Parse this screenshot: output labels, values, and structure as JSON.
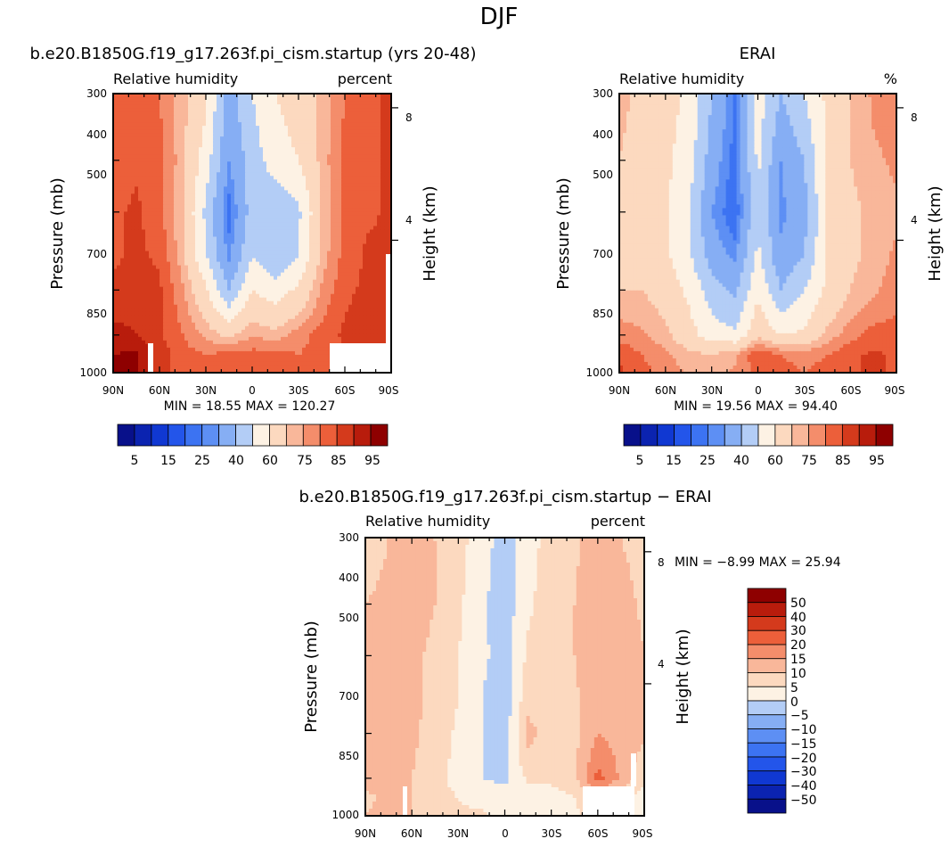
{
  "figure": {
    "title": "DJF"
  },
  "colors": {
    "blue_dark": "#08108a",
    "red_dark": "#8e0000",
    "neutral": "#fdf2e4",
    "frame": "#000000",
    "missing": "#ffffff"
  },
  "chart_data": [
    {
      "type": "heatmap",
      "title": "b.e20.B1850G.f19_g17.263f.pi_cism.startup (yrs 20-48)",
      "field_label": "Relative humidity",
      "units_label": "percent",
      "xlabel": "",
      "ylabel": "Pressure (mb)",
      "right_axis_label": "Height (km)",
      "x_ticks": [
        "90N",
        "60N",
        "30N",
        "0",
        "30S",
        "60S",
        "90S"
      ],
      "y_ticks": [
        "300",
        "400",
        "500",
        "700",
        "850",
        "1000"
      ],
      "height_ticks": [
        "8",
        "4"
      ],
      "y_scale": "log-pressure",
      "ylim": [
        1000,
        300
      ],
      "stats_text": "MIN =   18.55   MAX = 120.27",
      "colorbar_levels": [
        5,
        10,
        15,
        20,
        25,
        30,
        40,
        50,
        60,
        70,
        75,
        80,
        85,
        90,
        95
      ],
      "colorbar_labels": [
        "5",
        "15",
        "25",
        "40",
        "60",
        "75",
        "85",
        "95"
      ],
      "colorbar_orientation": "horizontal",
      "lat_grid": [
        90,
        75,
        60,
        45,
        30,
        15,
        0,
        -15,
        -30,
        -45,
        -60,
        -75,
        -90
      ],
      "p_grid": [
        300,
        400,
        500,
        600,
        700,
        850,
        925,
        1000
      ],
      "values": [
        [
          80,
          82,
          80,
          72,
          62,
          35,
          50,
          60,
          65,
          72,
          80,
          84,
          86
        ],
        [
          82,
          84,
          82,
          72,
          55,
          30,
          45,
          55,
          60,
          72,
          82,
          84,
          86
        ],
        [
          84,
          86,
          82,
          70,
          48,
          22,
          45,
          40,
          48,
          70,
          82,
          84,
          86
        ],
        [
          84,
          86,
          84,
          72,
          50,
          28,
          50,
          40,
          50,
          72,
          82,
          86,
          86
        ],
        [
          86,
          88,
          86,
          76,
          62,
          40,
          60,
          55,
          62,
          76,
          84,
          86,
          86
        ],
        [
          92,
          90,
          86,
          80,
          74,
          68,
          75,
          72,
          78,
          82,
          86,
          88,
          86
        ],
        [
          95,
          96,
          88,
          82,
          80,
          82,
          82,
          82,
          80,
          82,
          84,
          86,
          86
        ],
        [
          96,
          96,
          88,
          82,
          80,
          82,
          84,
          82,
          80,
          82,
          84,
          86,
          86
        ]
      ],
      "missing_regions": "surface/topography below ground (white)"
    },
    {
      "type": "heatmap",
      "title": "ERAI",
      "field_label": "Relative humidity",
      "units_label": "%",
      "xlabel": "",
      "ylabel": "Pressure (mb)",
      "right_axis_label": "Height (km)",
      "x_ticks": [
        "90N",
        "60N",
        "30N",
        "0",
        "30S",
        "60S",
        "90S"
      ],
      "y_ticks": [
        "300",
        "400",
        "500",
        "700",
        "850",
        "1000"
      ],
      "height_ticks": [
        "8",
        "4"
      ],
      "y_scale": "log-pressure",
      "ylim": [
        1000,
        300
      ],
      "stats_text": "MIN =   19.56   MAX =   94.40",
      "colorbar_levels": [
        5,
        10,
        15,
        20,
        25,
        30,
        40,
        50,
        60,
        70,
        75,
        80,
        85,
        90,
        95
      ],
      "colorbar_labels": [
        "5",
        "15",
        "25",
        "40",
        "60",
        "75",
        "85",
        "95"
      ],
      "colorbar_orientation": "horizontal",
      "lat_grid": [
        90,
        75,
        60,
        45,
        30,
        15,
        0,
        -15,
        -30,
        -45,
        -60,
        -75,
        -90
      ],
      "p_grid": [
        300,
        400,
        500,
        600,
        700,
        850,
        925,
        1000
      ],
      "values": [
        [
          72,
          68,
          64,
          58,
          40,
          25,
          55,
          40,
          50,
          62,
          70,
          76,
          78
        ],
        [
          70,
          66,
          62,
          55,
          35,
          22,
          52,
          30,
          40,
          62,
          70,
          74,
          76
        ],
        [
          68,
          64,
          62,
          50,
          30,
          20,
          50,
          28,
          36,
          60,
          68,
          72,
          74
        ],
        [
          68,
          66,
          62,
          52,
          35,
          28,
          52,
          32,
          40,
          60,
          68,
          72,
          76
        ],
        [
          70,
          70,
          66,
          58,
          45,
          38,
          58,
          40,
          50,
          62,
          70,
          74,
          78
        ],
        [
          78,
          76,
          72,
          64,
          55,
          52,
          68,
          60,
          62,
          72,
          78,
          82,
          82
        ],
        [
          84,
          80,
          76,
          72,
          70,
          74,
          84,
          80,
          78,
          80,
          84,
          86,
          84
        ],
        [
          86,
          82,
          78,
          74,
          72,
          76,
          82,
          82,
          80,
          82,
          84,
          86,
          84
        ]
      ]
    },
    {
      "type": "heatmap",
      "title": "b.e20.B1850G.f19_g17.263f.pi_cism.startup − ERAI",
      "field_label": "Relative humidity",
      "units_label": "percent",
      "xlabel": "",
      "ylabel": "Pressure (mb)",
      "right_axis_label": "Height (km)",
      "x_ticks": [
        "90N",
        "60N",
        "30N",
        "0",
        "30S",
        "60S",
        "90S"
      ],
      "y_ticks": [
        "300",
        "400",
        "500",
        "700",
        "850",
        "1000"
      ],
      "height_ticks": [
        "8",
        "4"
      ],
      "y_scale": "log-pressure",
      "ylim": [
        1000,
        300
      ],
      "stats_text": "MIN =   −8.99   MAX =   25.94",
      "colorbar_levels": [
        -50,
        -40,
        -30,
        -20,
        -15,
        -10,
        -5,
        0,
        5,
        10,
        15,
        20,
        30,
        40,
        50
      ],
      "colorbar_labels": [
        "50",
        "40",
        "30",
        "20",
        "15",
        "10",
        "5",
        "0",
        "−5",
        "−10",
        "−15",
        "−20",
        "−30",
        "−40",
        "−50"
      ],
      "colorbar_orientation": "vertical",
      "lat_grid": [
        90,
        75,
        60,
        45,
        30,
        15,
        0,
        -15,
        -30,
        -45,
        -60,
        -75,
        -90
      ],
      "p_grid": [
        300,
        400,
        500,
        600,
        700,
        850,
        925,
        1000
      ],
      "values": [
        [
          8,
          10,
          12,
          10,
          7,
          2,
          -2,
          3,
          7,
          9,
          13,
          10,
          8
        ],
        [
          10,
          11,
          12,
          10,
          6,
          1,
          -3,
          4,
          8,
          10,
          14,
          12,
          9
        ],
        [
          12,
          11,
          11,
          9,
          5,
          1,
          -2,
          6,
          8,
          10,
          15,
          14,
          10
        ],
        [
          13,
          12,
          11,
          9,
          5,
          0,
          -3,
          8,
          6,
          9,
          14,
          14,
          10
        ],
        [
          13,
          12,
          11,
          8,
          4,
          0,
          -3,
          12,
          7,
          9,
          15,
          13,
          11
        ],
        [
          12,
          12,
          10,
          7,
          3,
          0,
          -1,
          6,
          6,
          8,
          22,
          14,
          6
        ],
        [
          9,
          11,
          10,
          7,
          5,
          3,
          2,
          2,
          3,
          5,
          10,
          6,
          3
        ],
        [
          10,
          12,
          10,
          8,
          6,
          6,
          2,
          2,
          3,
          4,
          8,
          6,
          3
        ]
      ]
    }
  ]
}
